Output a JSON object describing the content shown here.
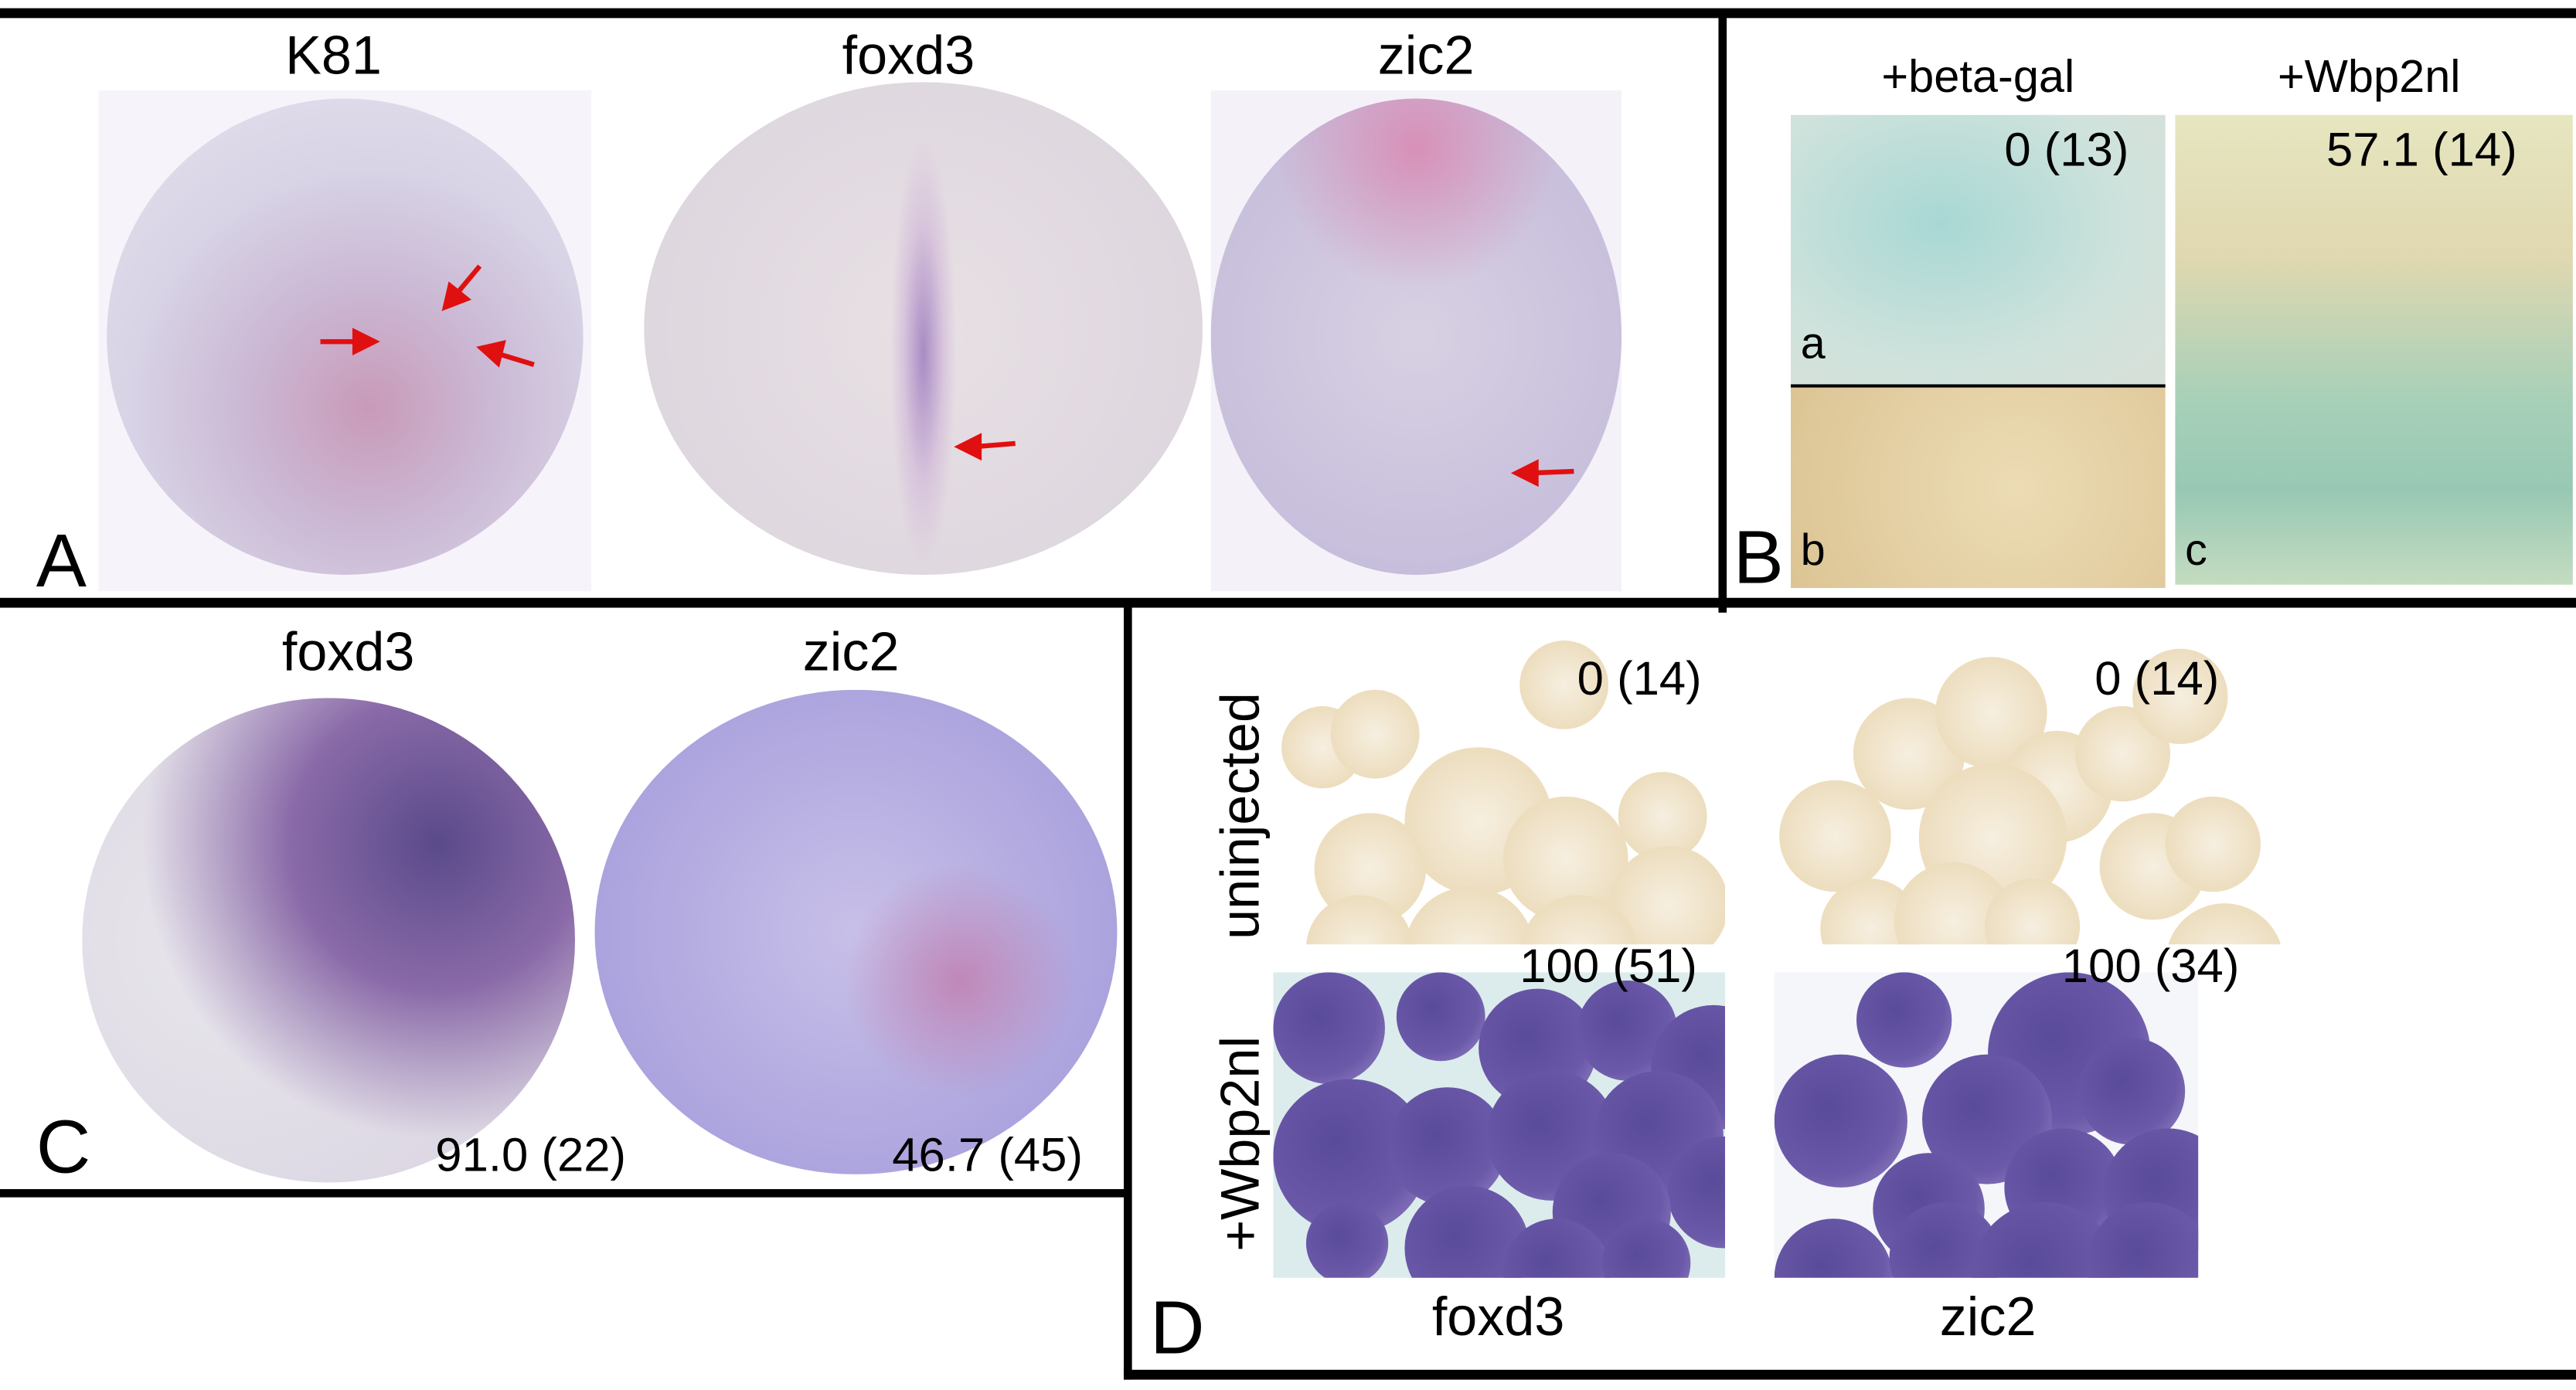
{
  "panel_a": {
    "letter": "A",
    "titles": [
      "K81",
      "foxd3",
      "zic2"
    ],
    "arrow_color": "#e01010"
  },
  "panel_b": {
    "letter": "B",
    "titles": [
      "+beta-gal",
      "+Wbp2nl"
    ],
    "scores": [
      "0 (13)",
      "57.1 (14)"
    ],
    "sublabels": [
      "a",
      "b",
      "c"
    ]
  },
  "panel_c": {
    "letter": "C",
    "titles": [
      "foxd3",
      "zic2"
    ],
    "scores": [
      "91.0 (22)",
      "46.7 (45)"
    ]
  },
  "panel_d": {
    "letter": "D",
    "row_labels": [
      "uninjected",
      "+Wbp2nl"
    ],
    "column_labels": [
      "foxd3",
      "zic2"
    ],
    "scores": {
      "uninjected_foxd3": "0 (14)",
      "uninjected_zic2": "0 (14)",
      "wbp2nl_foxd3": "100 (51)",
      "wbp2nl_zic2": "100 (34)"
    }
  },
  "colors": {
    "stain_purple": "#5a4a9a",
    "beta_gal_blue": "#7fc8c8",
    "pigment_brown": "#c8a060"
  }
}
